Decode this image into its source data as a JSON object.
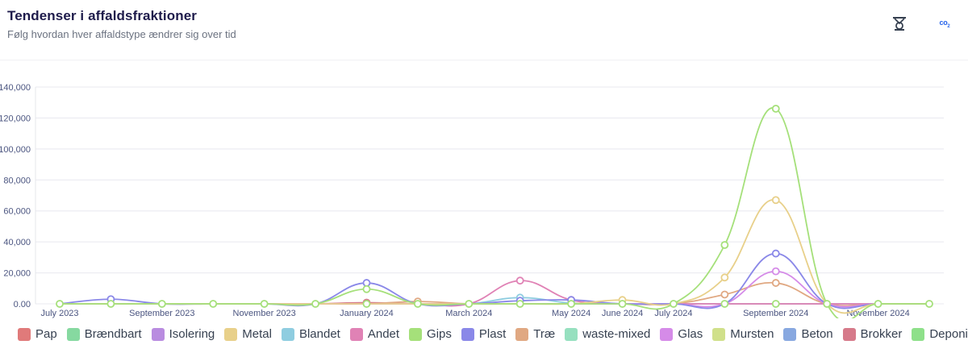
{
  "header": {
    "title": "Tendenser i affaldsfraktioner",
    "subtitle": "Følg hvordan hver affaldstype ændrer sig over tid"
  },
  "toolbar": {
    "co2_label": "co",
    "co2_sub": "2",
    "scale_icon": "scale-icon",
    "co2_icon": "co2-icon"
  },
  "chart_data": {
    "type": "line",
    "x": [
      "2023-07",
      "2023-08",
      "2023-09",
      "2023-10",
      "2023-11",
      "2023-12",
      "2024-01",
      "2024-02",
      "2024-03",
      "2024-04",
      "2024-05",
      "2024-06",
      "2024-07",
      "2024-08",
      "2024-09",
      "2024-10",
      "2024-11",
      "2024-12"
    ],
    "xticks": [
      {
        "label": "July 2023",
        "idx": 0
      },
      {
        "label": "September 2023",
        "idx": 2
      },
      {
        "label": "November 2023",
        "idx": 4
      },
      {
        "label": "January 2024",
        "idx": 6
      },
      {
        "label": "March 2024",
        "idx": 8
      },
      {
        "label": "May 2024",
        "idx": 10
      },
      {
        "label": "June 2024",
        "idx": 11
      },
      {
        "label": "July 2024",
        "idx": 12
      },
      {
        "label": "September 2024",
        "idx": 14
      },
      {
        "label": "November 2024",
        "idx": 16
      }
    ],
    "ylim": [
      0,
      140000
    ],
    "yticks": [
      "0.00",
      "20,000",
      "40,000",
      "60,000",
      "80,000",
      "100,000",
      "120,000",
      "140,000"
    ],
    "ytick_values": [
      0,
      20000,
      40000,
      60000,
      80000,
      100000,
      120000,
      140000
    ],
    "grid": true,
    "legend_position": "bottom",
    "series": [
      {
        "name": "Pap",
        "color": "#e07a7a",
        "values": [
          0,
          0,
          0,
          0,
          0,
          0,
          0,
          0,
          0,
          0,
          0,
          0,
          0,
          0,
          0,
          0,
          0,
          0
        ]
      },
      {
        "name": "Brændbart",
        "color": "#86d9a0",
        "values": [
          0,
          0,
          0,
          0,
          0,
          0,
          0,
          0,
          0,
          0,
          0,
          0,
          0,
          0,
          0,
          0,
          0,
          0
        ]
      },
      {
        "name": "Isolering",
        "color": "#b98ce0",
        "values": [
          0,
          0,
          0,
          0,
          0,
          0,
          0,
          0,
          0,
          0,
          0,
          0,
          0,
          0,
          0,
          0,
          0,
          0
        ]
      },
      {
        "name": "Metal",
        "color": "#e8d08a",
        "values": [
          0,
          0,
          0,
          0,
          0,
          0,
          0,
          0,
          0,
          0,
          0,
          2500,
          0,
          17000,
          67000,
          0,
          0,
          0
        ]
      },
      {
        "name": "Blandet",
        "color": "#8fcde0",
        "values": [
          0,
          0,
          0,
          0,
          0,
          0,
          0,
          0,
          0,
          4000,
          500,
          0,
          0,
          0,
          0,
          0,
          0,
          0
        ]
      },
      {
        "name": "Andet",
        "color": "#e082b5",
        "values": [
          0,
          0,
          0,
          0,
          0,
          0,
          0,
          0,
          0,
          15000,
          2500,
          0,
          0,
          0,
          0,
          0,
          0,
          0
        ]
      },
      {
        "name": "Gips",
        "color": "#a5e07a",
        "values": [
          0,
          0,
          0,
          0,
          0,
          0,
          9500,
          0,
          0,
          0,
          0,
          0,
          0,
          38000,
          126000,
          0,
          0,
          0
        ]
      },
      {
        "name": "Plast",
        "color": "#8a88e8",
        "values": [
          0,
          3000,
          0,
          0,
          0,
          0,
          13500,
          0,
          0,
          2000,
          2500,
          0,
          0,
          0,
          32500,
          0,
          0,
          0
        ]
      },
      {
        "name": "Træ",
        "color": "#e0a882",
        "values": [
          0,
          0,
          0,
          0,
          0,
          0,
          0,
          1500,
          0,
          0,
          0,
          0,
          0,
          6000,
          13500,
          0,
          0,
          0
        ]
      },
      {
        "name": "waste-mixed",
        "color": "#96e0bf",
        "values": [
          0,
          0,
          0,
          0,
          0,
          0,
          0,
          0,
          0,
          0,
          0,
          0,
          0,
          0,
          0,
          0,
          0,
          0
        ]
      },
      {
        "name": "Glas",
        "color": "#d58be8",
        "values": [
          0,
          0,
          0,
          0,
          0,
          0,
          0,
          0,
          0,
          0,
          0,
          0,
          0,
          0,
          21000,
          0,
          0,
          0
        ]
      },
      {
        "name": "Mursten",
        "color": "#d0e08a",
        "values": [
          0,
          0,
          0,
          0,
          0,
          0,
          0,
          0,
          0,
          0,
          0,
          0,
          0,
          0,
          0,
          0,
          0,
          0
        ]
      },
      {
        "name": "Beton",
        "color": "#88a8e0",
        "values": [
          0,
          0,
          0,
          0,
          0,
          0,
          0,
          0,
          0,
          0,
          0,
          0,
          0,
          0,
          0,
          0,
          0,
          0
        ]
      },
      {
        "name": "Brokker",
        "color": "#d67a8a",
        "values": [
          0,
          0,
          0,
          0,
          0,
          0,
          800,
          0,
          0,
          0,
          0,
          0,
          0,
          0,
          0,
          0,
          0,
          0
        ]
      },
      {
        "name": "Deponi",
        "color": "#8ee08a",
        "values": [
          0,
          0,
          0,
          0,
          0,
          0,
          0,
          0,
          0,
          0,
          0,
          0,
          0,
          0,
          0,
          0,
          0,
          0
        ]
      }
    ]
  }
}
